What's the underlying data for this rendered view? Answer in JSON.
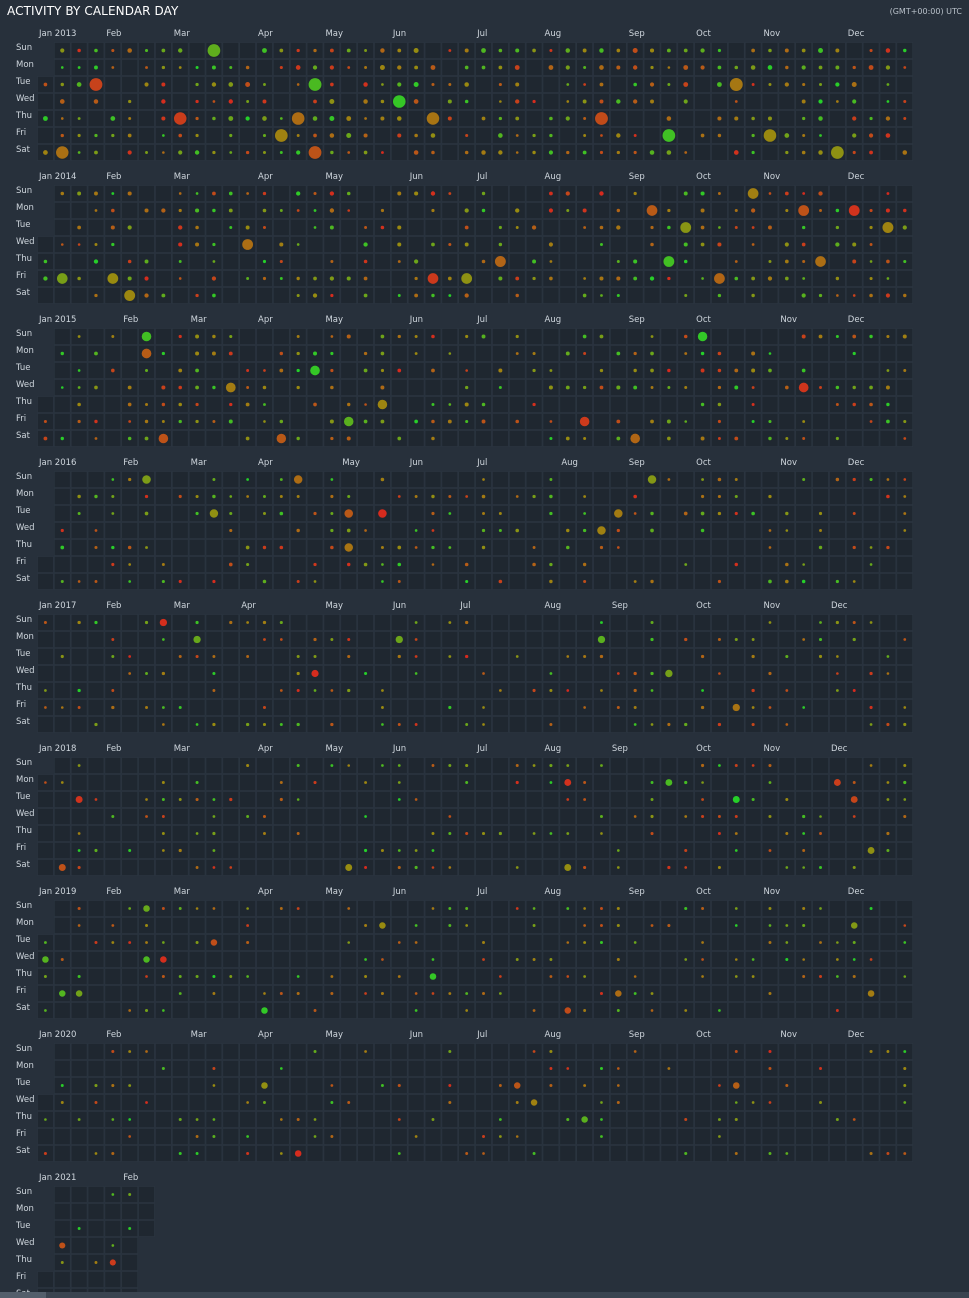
{
  "title": "ACTIVITY BY CALENDAR DAY",
  "timezone": "(GMT+00:00) UTC",
  "colors": {
    "background": "#27303b",
    "cell": "#1f2730",
    "gridline": "#2c3642",
    "low": "#d62a1e",
    "mid": "#9a8a10",
    "high": "#23d12a"
  },
  "chart_data": {
    "type": "heatmap",
    "title": "ACTIVITY BY CALENDAR DAY",
    "weekday_labels": [
      "Sun",
      "Mon",
      "Tue",
      "Wed",
      "Thu",
      "Fri",
      "Sat"
    ],
    "legend": "",
    "years": [
      {
        "year": 2013,
        "label": "Jan 2013",
        "months": [
          "Feb",
          "Mar",
          "Apr",
          "May",
          "Jun",
          "Jul",
          "Aug",
          "Sep",
          "Oct",
          "Nov",
          "Dec"
        ],
        "days_of_data": 365,
        "density": 0.82,
        "intensity": 1.0
      },
      {
        "year": 2014,
        "label": "Jan 2014",
        "months": [
          "Feb",
          "Mar",
          "Apr",
          "May",
          "Jun",
          "Jul",
          "Aug",
          "Sep",
          "Oct",
          "Nov",
          "Dec"
        ],
        "days_of_data": 365,
        "density": 0.62,
        "intensity": 0.75
      },
      {
        "year": 2015,
        "label": "Jan 2015",
        "months": [
          "Feb",
          "Mar",
          "Apr",
          "May",
          "Jun",
          "Jul",
          "Aug",
          "Sep",
          "Oct",
          "Nov",
          "Dec"
        ],
        "days_of_data": 365,
        "density": 0.58,
        "intensity": 0.6
      },
      {
        "year": 2016,
        "label": "Jan 2016",
        "months": [
          "Feb",
          "Mar",
          "Apr",
          "May",
          "Jun",
          "Jul",
          "Aug",
          "Sep",
          "Oct",
          "Nov",
          "Dec"
        ],
        "days_of_data": 366,
        "density": 0.5,
        "intensity": 0.45
      },
      {
        "year": 2017,
        "label": "Jan 2017",
        "months": [
          "Feb",
          "Mar",
          "Apr",
          "May",
          "Jun",
          "Jul",
          "Aug",
          "Sep",
          "Oct",
          "Nov",
          "Dec"
        ],
        "days_of_data": 365,
        "density": 0.42,
        "intensity": 0.3
      },
      {
        "year": 2018,
        "label": "Jan 2018",
        "months": [
          "Feb",
          "Mar",
          "Apr",
          "May",
          "Jun",
          "Jul",
          "Aug",
          "Sep",
          "Oct",
          "Nov",
          "Dec"
        ],
        "days_of_data": 365,
        "density": 0.36,
        "intensity": 0.25
      },
      {
        "year": 2019,
        "label": "Jan 2019",
        "months": [
          "Feb",
          "Mar",
          "Apr",
          "May",
          "Jun",
          "Jul",
          "Aug",
          "Sep",
          "Oct",
          "Nov",
          "Dec"
        ],
        "days_of_data": 365,
        "density": 0.5,
        "intensity": 0.2
      },
      {
        "year": 2020,
        "label": "Jan 2020",
        "months": [
          "Feb",
          "Mar",
          "Apr",
          "May",
          "Jun",
          "Jul",
          "Aug",
          "Sep",
          "Oct",
          "Nov",
          "Dec"
        ],
        "days_of_data": 366,
        "density": 0.3,
        "intensity": 0.2
      },
      {
        "year": 2021,
        "label": "Jan 2021",
        "months": [
          "Feb"
        ],
        "days_of_data": 40,
        "density": 0.3,
        "intensity": 0.15
      }
    ]
  }
}
